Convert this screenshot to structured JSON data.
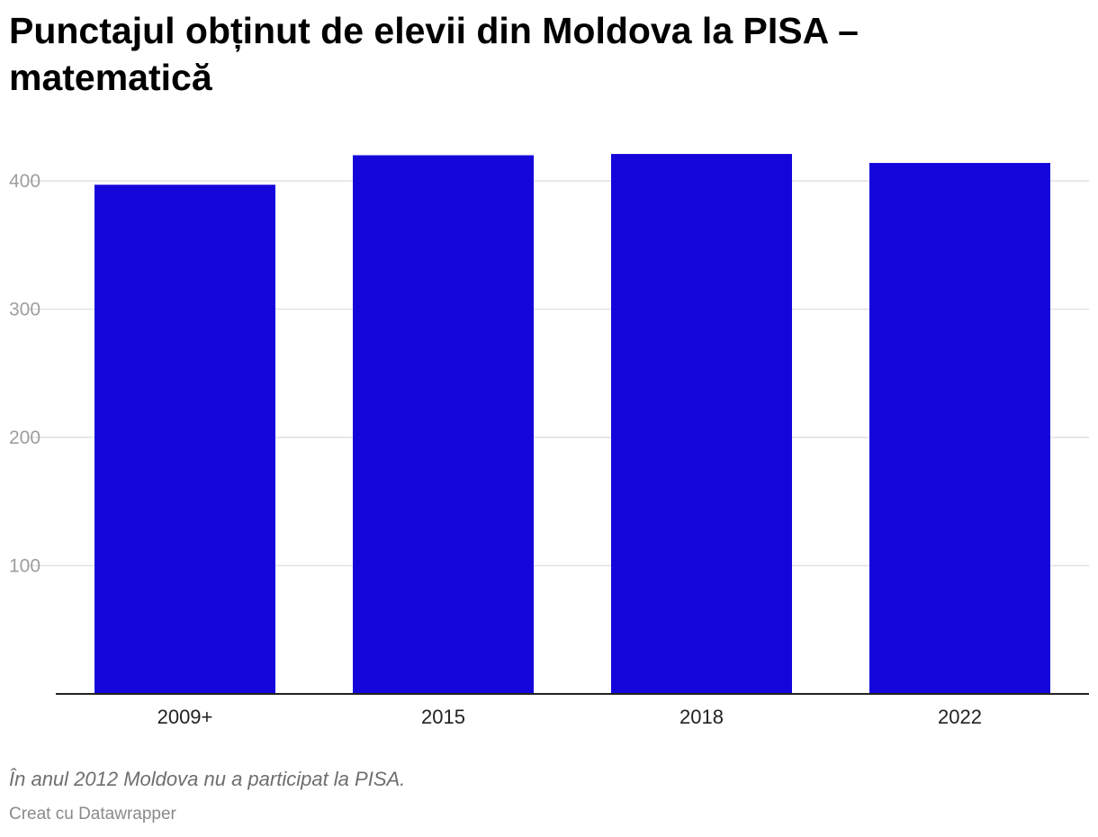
{
  "chart_data": {
    "type": "bar",
    "title": "Punctajul obținut de elevii din Moldova la PISA – matematică",
    "categories": [
      "2009+",
      "2015",
      "2018",
      "2022"
    ],
    "values": [
      397,
      420,
      421,
      414
    ],
    "ylim": [
      0,
      420
    ],
    "yticks": [
      100,
      200,
      300,
      400
    ],
    "grid": true,
    "bar_color": "#1405db",
    "xlabel": "",
    "ylabel": ""
  },
  "note": "În anul 2012 Moldova nu a participat la PISA.",
  "credit": "Creat cu Datawrapper"
}
